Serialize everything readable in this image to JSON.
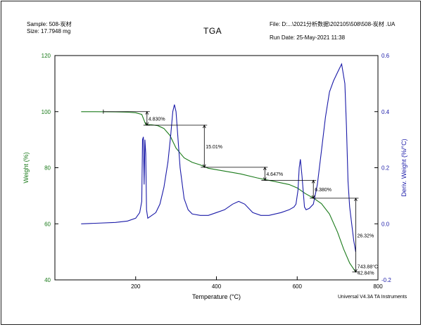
{
  "header": {
    "sample": "Sample: 508-炭材",
    "size": "Size:  17.7948 mg",
    "title": "TGA",
    "file": "File: D:...\\2021分析数据\\202105\\508\\508-炭材  .UA",
    "run_date": "Run Date: 25-May-2021 11:38"
  },
  "footer": {
    "instrument": "Universal V4.3A TA Instruments"
  },
  "colors": {
    "weight": "#1a7a1a",
    "deriv": "#1a1aa8",
    "frame": "#000000"
  },
  "chart_data": {
    "type": "line",
    "title": "TGA",
    "xlabel": "Temperature (°C)",
    "ylabel": "Weight (%)",
    "y2label": "Deriv. Weight (%/°C)",
    "xlim": [
      0,
      800
    ],
    "ylim": [
      40,
      120
    ],
    "y2lim": [
      -0.2,
      0.6
    ],
    "xticks": [
      0,
      200,
      400,
      600,
      800
    ],
    "yticks": [
      40,
      60,
      80,
      100,
      120
    ],
    "y2ticks": [
      -0.2,
      0.0,
      0.2,
      0.4,
      0.6
    ],
    "grid": false,
    "series": [
      {
        "name": "Weight",
        "axis": "left",
        "x": [
          65,
          100,
          150,
          180,
          200,
          215,
          225,
          240,
          255,
          270,
          285,
          300,
          320,
          340,
          360,
          380,
          420,
          460,
          500,
          540,
          580,
          600,
          620,
          640,
          660,
          680,
          700,
          715,
          730,
          745
        ],
        "y": [
          100.0,
          100.0,
          99.9,
          99.8,
          99.6,
          99.0,
          95.4,
          95.3,
          95.0,
          94.0,
          91.5,
          87.0,
          83.5,
          81.9,
          81.0,
          79.8,
          78.8,
          77.8,
          76.4,
          75.2,
          74.0,
          72.8,
          70.8,
          69.2,
          67.2,
          63.5,
          57.0,
          51.0,
          46.0,
          42.8
        ]
      },
      {
        "name": "Deriv. Weight",
        "axis": "right",
        "x": [
          65,
          100,
          150,
          180,
          200,
          210,
          215,
          217,
          219,
          221,
          223,
          225,
          227,
          230,
          240,
          250,
          260,
          270,
          280,
          287,
          292,
          296,
          300,
          305,
          310,
          320,
          330,
          340,
          360,
          380,
          400,
          420,
          440,
          455,
          470,
          490,
          510,
          530,
          560,
          580,
          592,
          597,
          602,
          605,
          608,
          612,
          618,
          622,
          630,
          640,
          650,
          660,
          670,
          680,
          690,
          700,
          710,
          718,
          722,
          726,
          730,
          735,
          740,
          745
        ],
        "y": [
          0.0,
          0.002,
          0.005,
          0.01,
          0.02,
          0.04,
          0.08,
          0.3,
          0.31,
          0.14,
          0.3,
          0.25,
          0.05,
          0.02,
          0.03,
          0.04,
          0.07,
          0.13,
          0.22,
          0.32,
          0.4,
          0.425,
          0.4,
          0.3,
          0.2,
          0.09,
          0.05,
          0.035,
          0.03,
          0.03,
          0.04,
          0.05,
          0.07,
          0.08,
          0.07,
          0.04,
          0.03,
          0.03,
          0.04,
          0.05,
          0.06,
          0.07,
          0.12,
          0.2,
          0.23,
          0.17,
          0.06,
          0.05,
          0.055,
          0.07,
          0.14,
          0.26,
          0.38,
          0.47,
          0.51,
          0.54,
          0.57,
          0.5,
          0.35,
          0.15,
          0.06,
          0.0,
          -0.06,
          -0.1
        ]
      }
    ],
    "annotations": [
      {
        "text": "4.830%",
        "x1": 120,
        "x2": 228,
        "y1": 100.0,
        "y2": 95.17
      },
      {
        "text": "15.01%",
        "x1": 228,
        "x2": 370,
        "y1": 95.17,
        "y2": 80.16
      },
      {
        "text": "4.647%",
        "x1": 370,
        "x2": 520,
        "y1": 80.16,
        "y2": 75.51
      },
      {
        "text": "6.380%",
        "x1": 520,
        "x2": 640,
        "y1": 75.51,
        "y2": 69.13
      },
      {
        "text": "26.32%",
        "x1": 640,
        "x2": 745,
        "y1": 69.13,
        "y2": 42.81
      },
      {
        "text": "743.88°C",
        "x": 743.88
      },
      {
        "text": "42.84%",
        "y": 42.84
      }
    ]
  }
}
